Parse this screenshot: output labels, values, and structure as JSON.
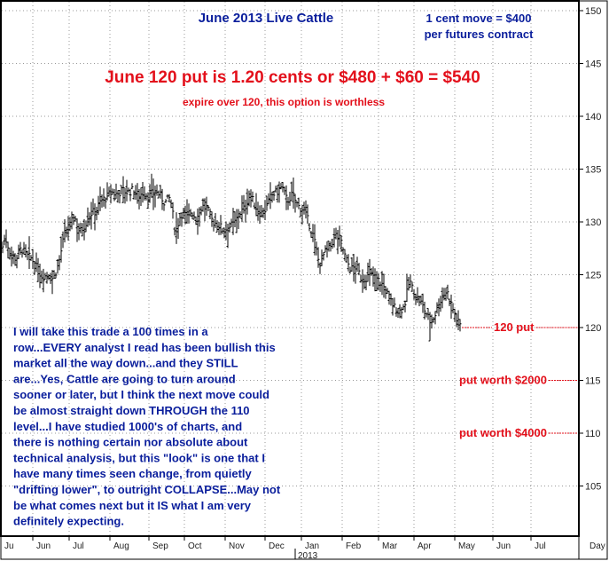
{
  "chart_data": {
    "type": "bar",
    "title": "June 2013 Live Cattle",
    "note_lines": [
      "1 cent move = $400",
      "per futures contract"
    ],
    "headline": "June 120 put is 1.20 cents or $480 + $60 = $540",
    "subheadline": "expire over 120, this option is worthless",
    "commentary": [
      "I will take this trade a 100 times in a",
      "row...EVERY analyst I read has been bullish this",
      "market all the way down...and they STILL",
      "are...Yes, Cattle are going to turn around",
      "sooner or later, but I think the next move could",
      "be almost straight down THROUGH the 110",
      "level...I have studied 1000's of charts, and",
      "there is nothing certain nor absolute about",
      "technical analysis, but this \"look\" is one that I",
      "have many times seen change, from quietly",
      "\"drifting lower\", to outright COLLAPSE...May not",
      "be what comes next but it IS what I am very",
      "definitely expecting."
    ],
    "annotations": [
      {
        "text": "120 put",
        "price": 120
      },
      {
        "text": "put worth $2000",
        "price": 115
      },
      {
        "text": "put worth $4000",
        "price": 110
      }
    ],
    "y_ticks": [
      105,
      110,
      115,
      120,
      125,
      130,
      135,
      140,
      145,
      150
    ],
    "ylim": [
      101.5,
      150.5
    ],
    "x_ticks": [
      "Ju",
      "Jun",
      "Jul",
      "Aug",
      "Sep",
      "Oct",
      "Nov",
      "Dec",
      "Jan",
      "Feb",
      "Mar",
      "Apr",
      "May",
      "Jun",
      "Jul",
      "Day"
    ],
    "year_label": "2013",
    "price_path": [
      [
        0,
        126.8
      ],
      [
        6,
        128.5
      ],
      [
        12,
        127.0
      ],
      [
        18,
        126.5
      ],
      [
        24,
        127.5
      ],
      [
        30,
        126.8
      ],
      [
        36,
        126.5
      ],
      [
        42,
        125.5
      ],
      [
        48,
        124.8
      ],
      [
        54,
        125.0
      ],
      [
        60,
        124.6
      ],
      [
        66,
        126.0
      ],
      [
        72,
        128.5
      ],
      [
        78,
        129.5
      ],
      [
        84,
        130.5
      ],
      [
        90,
        129.0
      ],
      [
        96,
        129.8
      ],
      [
        102,
        130.8
      ],
      [
        108,
        131.0
      ],
      [
        114,
        132.0
      ],
      [
        120,
        132.3
      ],
      [
        126,
        132.8
      ],
      [
        132,
        132.6
      ],
      [
        138,
        133.0
      ],
      [
        144,
        132.8
      ],
      [
        150,
        133.0
      ],
      [
        156,
        132.5
      ],
      [
        162,
        132.8
      ],
      [
        168,
        132.4
      ],
      [
        174,
        132.9
      ],
      [
        180,
        132.6
      ],
      [
        186,
        131.8
      ],
      [
        192,
        132.3
      ],
      [
        198,
        129.0
      ],
      [
        204,
        130.8
      ],
      [
        210,
        130.6
      ],
      [
        216,
        131.0
      ],
      [
        222,
        130.2
      ],
      [
        228,
        131.5
      ],
      [
        234,
        131.2
      ],
      [
        240,
        130.0
      ],
      [
        246,
        129.8
      ],
      [
        252,
        129.2
      ],
      [
        258,
        129.5
      ],
      [
        264,
        129.8
      ],
      [
        270,
        130.8
      ],
      [
        276,
        131.3
      ],
      [
        282,
        132.6
      ],
      [
        288,
        131.5
      ],
      [
        294,
        130.8
      ],
      [
        300,
        131.2
      ],
      [
        306,
        132.5
      ],
      [
        312,
        132.8
      ],
      [
        318,
        133.3
      ],
      [
        324,
        132.0
      ],
      [
        330,
        132.6
      ],
      [
        336,
        131.5
      ],
      [
        342,
        131.2
      ],
      [
        348,
        130.0
      ],
      [
        354,
        128.5
      ],
      [
        360,
        126.0
      ],
      [
        366,
        127.0
      ],
      [
        372,
        127.5
      ],
      [
        378,
        128.8
      ],
      [
        384,
        128.3
      ],
      [
        390,
        126.5
      ],
      [
        396,
        125.5
      ],
      [
        402,
        125.8
      ],
      [
        408,
        124.5
      ],
      [
        414,
        124.8
      ],
      [
        420,
        125.0
      ],
      [
        426,
        124.5
      ],
      [
        432,
        124.0
      ],
      [
        438,
        123.0
      ],
      [
        444,
        122.0
      ],
      [
        450,
        121.5
      ],
      [
        456,
        122.0
      ],
      [
        462,
        124.5
      ],
      [
        468,
        123.0
      ],
      [
        474,
        122.5
      ],
      [
        480,
        121.5
      ],
      [
        486,
        120.4
      ],
      [
        492,
        121.5
      ],
      [
        498,
        122.8
      ],
      [
        504,
        123.5
      ],
      [
        510,
        122.0
      ],
      [
        516,
        120.5
      ],
      [
        520,
        120.2
      ]
    ]
  }
}
